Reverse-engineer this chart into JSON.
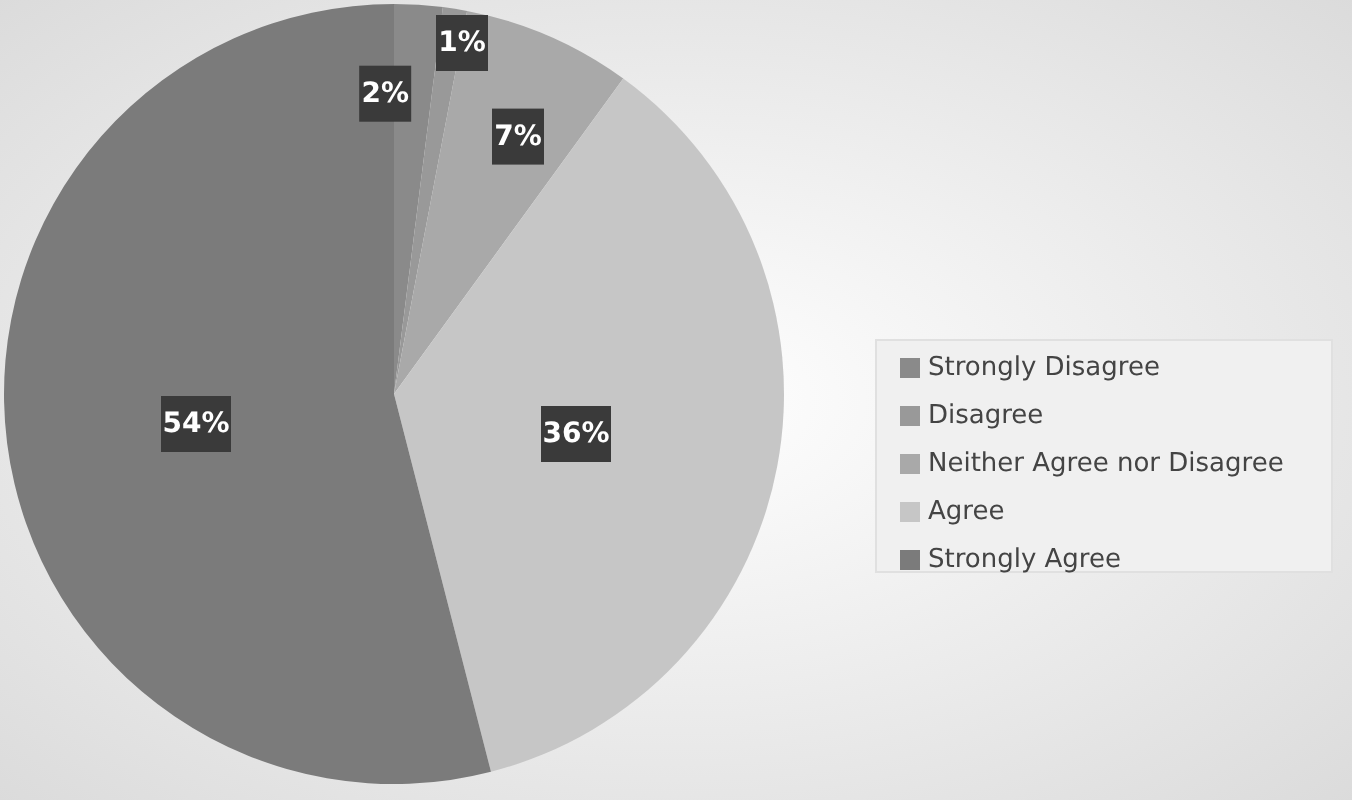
{
  "chart_data": {
    "type": "pie",
    "categories": [
      "Strongly Disagree",
      "Disagree",
      "Neither Agree nor Disagree",
      "Agree",
      "Strongly Agree"
    ],
    "values": [
      2,
      1,
      7,
      36,
      54
    ],
    "colors": [
      "#8a8a8a",
      "#999999",
      "#a9a9a9",
      "#c6c6c6",
      "#7b7b7b"
    ],
    "value_labels": [
      "2%",
      "1%",
      "7%",
      "36%",
      "54%"
    ],
    "legend": "right"
  }
}
